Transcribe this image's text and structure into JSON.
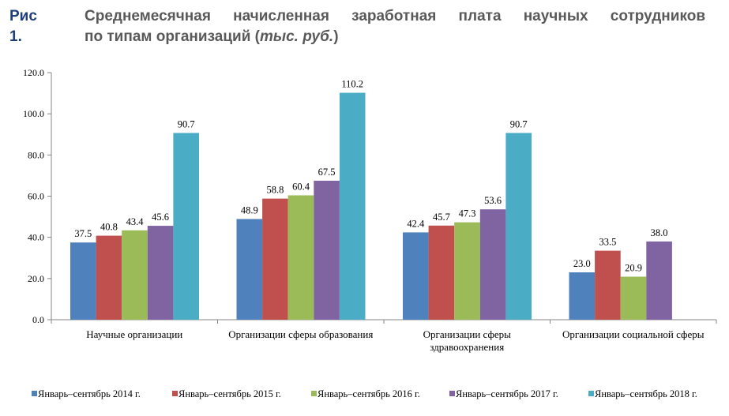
{
  "figure_label": "Рис 1.",
  "title_line1": "Среднемесячная начисленная заработная плата научных сотрудников",
  "title_line2_prefix": "по типам организаций (",
  "title_unit": "тыс. руб.",
  "title_line2_suffix": ")",
  "chart_data": {
    "type": "bar",
    "categories": [
      "Научные организации",
      "Организации сферы образования",
      "Организации сферы здравоохранения",
      "Организации социальной сферы"
    ],
    "category_lines": [
      [
        "Научные организации"
      ],
      [
        "Организации сферы образования"
      ],
      [
        "Организации сферы",
        "здравоохранения"
      ],
      [
        "Организации социальной сферы"
      ]
    ],
    "series": [
      {
        "name": "Январь–сентябрь 2014 г.",
        "color": "#4f81bd",
        "values": [
          37.5,
          48.9,
          42.4,
          23.0
        ]
      },
      {
        "name": "Январь–сентябрь 2015 г.",
        "color": "#c0504d",
        "values": [
          40.8,
          58.8,
          45.7,
          33.5
        ]
      },
      {
        "name": "Январь–сентябрь 2016 г.",
        "color": "#9bbb59",
        "values": [
          43.4,
          60.4,
          47.3,
          20.9
        ]
      },
      {
        "name": "Январь–сентябрь 2017 г.",
        "color": "#8064a2",
        "values": [
          45.6,
          67.5,
          53.6,
          38.0
        ]
      },
      {
        "name": "Январь–сентябрь 2018 г.",
        "color": "#4bacc6",
        "values": [
          90.7,
          110.2,
          90.7,
          null
        ]
      }
    ],
    "ylim": [
      0,
      120
    ],
    "yticks": [
      "0.0",
      "20.0",
      "40.0",
      "60.0",
      "80.0",
      "100.0",
      "120.0"
    ],
    "grid": false,
    "legend": "bottom"
  }
}
